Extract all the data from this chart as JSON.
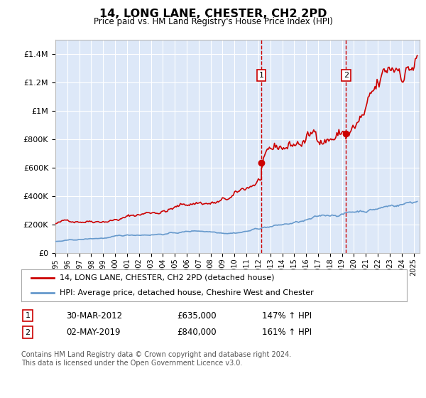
{
  "title": "14, LONG LANE, CHESTER, CH2 2PD",
  "subtitle": "Price paid vs. HM Land Registry's House Price Index (HPI)",
  "footnote": "Contains HM Land Registry data © Crown copyright and database right 2024.\nThis data is licensed under the Open Government Licence v3.0.",
  "legend_line1": "14, LONG LANE, CHESTER, CH2 2PD (detached house)",
  "legend_line2": "HPI: Average price, detached house, Cheshire West and Chester",
  "annotation1_date": "30-MAR-2012",
  "annotation1_price": "£635,000",
  "annotation1_hpi": "147% ↑ HPI",
  "annotation2_date": "02-MAY-2019",
  "annotation2_price": "£840,000",
  "annotation2_hpi": "161% ↑ HPI",
  "ylim": [
    0,
    1500000
  ],
  "yticks": [
    0,
    200000,
    400000,
    600000,
    800000,
    1000000,
    1200000,
    1400000
  ],
  "background_color": "#ffffff",
  "plot_bg_color": "#dde8f8",
  "grid_color": "#ffffff",
  "red_line_color": "#cc0000",
  "blue_line_color": "#6699cc",
  "vline_color": "#cc0000",
  "marker1_x": 2012.25,
  "marker1_y": 635000,
  "marker2_x": 2019.33,
  "marker2_y": 840000,
  "xmin": 1995,
  "xmax": 2025.5
}
